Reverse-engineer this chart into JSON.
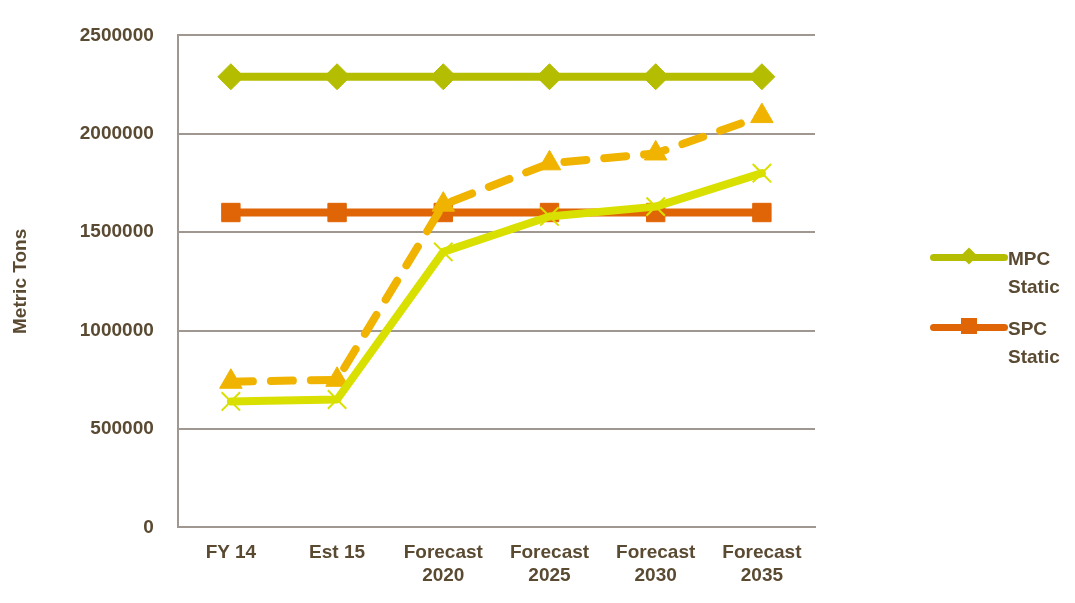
{
  "chart_data": {
    "type": "line",
    "ylabel": "Metric Tons",
    "categories": [
      "FY 14",
      "Est 15",
      "Forecast 2020",
      "Forecast 2025",
      "Forecast 2030",
      "Forecast 2035"
    ],
    "series": [
      {
        "name": "MPC Static",
        "color": "#b5bd00",
        "marker": "diamond",
        "line_style": "solid",
        "values": [
          2290000,
          2290000,
          2290000,
          2290000,
          2290000,
          2290000
        ]
      },
      {
        "name": "SPC Static",
        "color": "#e06506",
        "marker": "square",
        "line_style": "solid",
        "values": [
          1600000,
          1600000,
          1600000,
          1600000,
          1600000,
          1600000
        ]
      },
      {
        "color": "#f0b400",
        "marker": "triangle",
        "line_style": "dashed",
        "values": [
          740000,
          750000,
          1640000,
          1850000,
          1900000,
          2090000
        ]
      },
      {
        "color": "#d9e000",
        "marker": "cross",
        "line_style": "solid",
        "values": [
          640000,
          650000,
          1400000,
          1580000,
          1630000,
          1800000
        ]
      }
    ],
    "ylim": [
      0,
      2500000
    ],
    "yticks": [
      0,
      500000,
      1000000,
      1500000,
      2000000,
      2500000
    ],
    "grid": "y",
    "legend": "right"
  }
}
